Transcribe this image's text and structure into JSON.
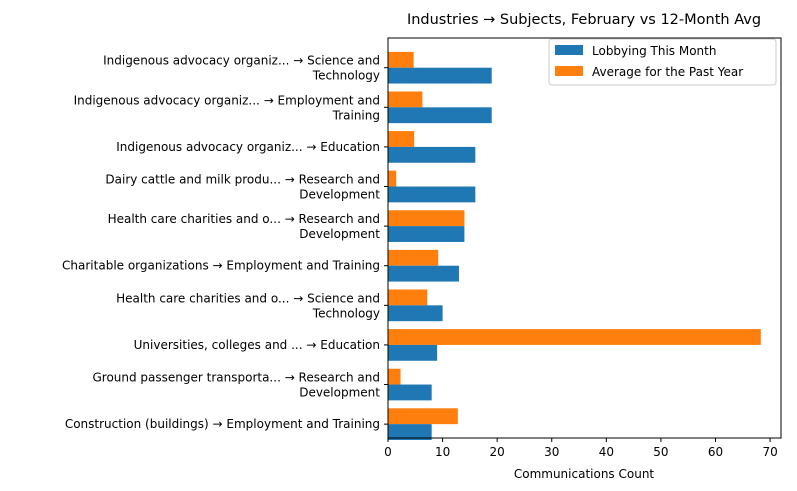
{
  "chart_data": {
    "type": "bar",
    "orientation": "horizontal",
    "title": "Industries → Subjects, February vs 12-Month Avg",
    "xlabel": "Communications Count",
    "ylabel": "",
    "xlim": [
      0,
      72
    ],
    "xticks": [
      0,
      10,
      20,
      30,
      40,
      50,
      60,
      70
    ],
    "grid": false,
    "legend_placement": "top-right",
    "categories": [
      [
        "Indigenous advocacy organiz... → Science and",
        "Technology"
      ],
      [
        "Indigenous advocacy organiz... → Employment and",
        "Training"
      ],
      [
        "Indigenous advocacy organiz... → Education"
      ],
      [
        "Dairy cattle and milk produ... → Research and",
        "Development"
      ],
      [
        "Health care charities and o... → Research and",
        "Development"
      ],
      [
        "Charitable organizations → Employment and Training"
      ],
      [
        "Health care charities and o... → Science and",
        "Technology"
      ],
      [
        "Universities, colleges and ... → Education"
      ],
      [
        "Ground passenger transporta... → Research and",
        "Development"
      ],
      [
        "Construction (buildings) → Employment and Training"
      ]
    ],
    "series": [
      {
        "name": "Lobbying This Month",
        "color": "#1f77b4",
        "values": [
          19,
          19,
          16,
          16,
          14,
          13,
          10,
          9,
          8,
          8
        ]
      },
      {
        "name": "Average for the Past Year",
        "color": "#ff7f0e",
        "values": [
          4.7,
          6.3,
          4.8,
          1.5,
          14,
          9.2,
          7.2,
          68.3,
          2.3,
          12.8
        ]
      }
    ]
  }
}
